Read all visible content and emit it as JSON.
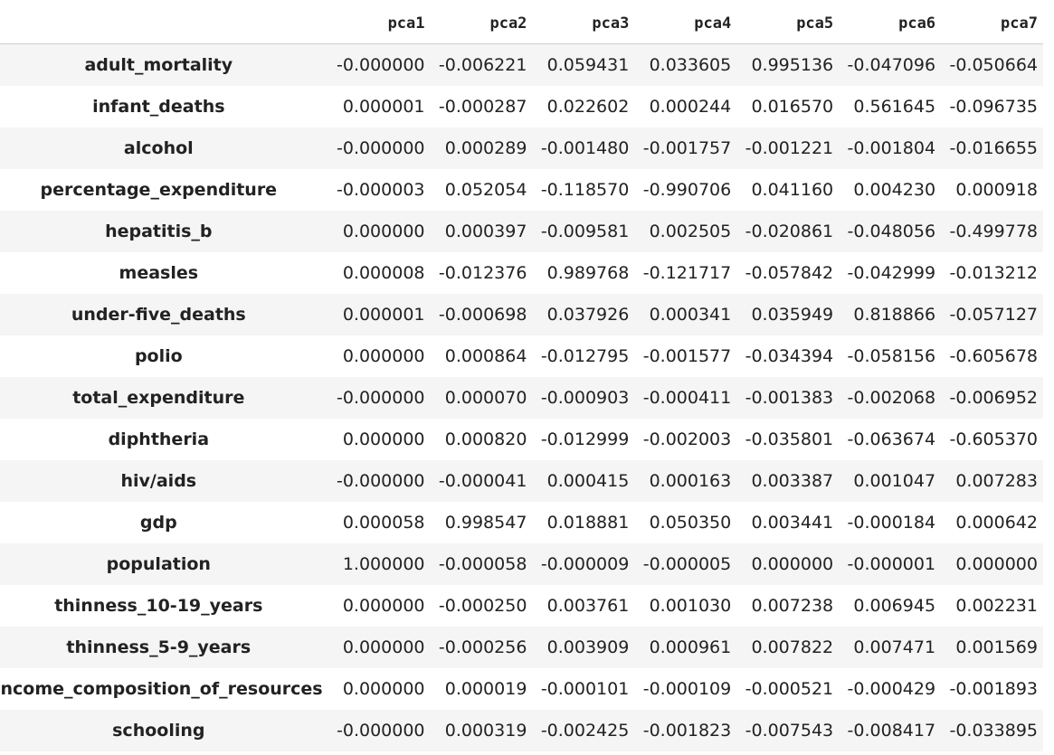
{
  "table": {
    "columns": [
      "pca1",
      "pca2",
      "pca3",
      "pca4",
      "pca5",
      "pca6",
      "pca7"
    ],
    "rows": [
      {
        "label": "adult_mortality",
        "values": [
          "-0.000000",
          "-0.006221",
          "0.059431",
          "0.033605",
          "0.995136",
          "-0.047096",
          "-0.050664"
        ]
      },
      {
        "label": "infant_deaths",
        "values": [
          "0.000001",
          "-0.000287",
          "0.022602",
          "0.000244",
          "0.016570",
          "0.561645",
          "-0.096735"
        ]
      },
      {
        "label": "alcohol",
        "values": [
          "-0.000000",
          "0.000289",
          "-0.001480",
          "-0.001757",
          "-0.001221",
          "-0.001804",
          "-0.016655"
        ]
      },
      {
        "label": "percentage_expenditure",
        "values": [
          "-0.000003",
          "0.052054",
          "-0.118570",
          "-0.990706",
          "0.041160",
          "0.004230",
          "0.000918"
        ]
      },
      {
        "label": "hepatitis_b",
        "values": [
          "0.000000",
          "0.000397",
          "-0.009581",
          "0.002505",
          "-0.020861",
          "-0.048056",
          "-0.499778"
        ]
      },
      {
        "label": "measles",
        "values": [
          "0.000008",
          "-0.012376",
          "0.989768",
          "-0.121717",
          "-0.057842",
          "-0.042999",
          "-0.013212"
        ]
      },
      {
        "label": "under-five_deaths",
        "values": [
          "0.000001",
          "-0.000698",
          "0.037926",
          "0.000341",
          "0.035949",
          "0.818866",
          "-0.057127"
        ]
      },
      {
        "label": "polio",
        "values": [
          "0.000000",
          "0.000864",
          "-0.012795",
          "-0.001577",
          "-0.034394",
          "-0.058156",
          "-0.605678"
        ]
      },
      {
        "label": "total_expenditure",
        "values": [
          "-0.000000",
          "0.000070",
          "-0.000903",
          "-0.000411",
          "-0.001383",
          "-0.002068",
          "-0.006952"
        ]
      },
      {
        "label": "diphtheria",
        "values": [
          "0.000000",
          "0.000820",
          "-0.012999",
          "-0.002003",
          "-0.035801",
          "-0.063674",
          "-0.605370"
        ]
      },
      {
        "label": "hiv/aids",
        "values": [
          "-0.000000",
          "-0.000041",
          "0.000415",
          "0.000163",
          "0.003387",
          "0.001047",
          "0.007283"
        ]
      },
      {
        "label": "gdp",
        "values": [
          "0.000058",
          "0.998547",
          "0.018881",
          "0.050350",
          "0.003441",
          "-0.000184",
          "0.000642"
        ]
      },
      {
        "label": "population",
        "values": [
          "1.000000",
          "-0.000058",
          "-0.000009",
          "-0.000005",
          "0.000000",
          "-0.000001",
          "0.000000"
        ]
      },
      {
        "label": "thinness_10-19_years",
        "values": [
          "0.000000",
          "-0.000250",
          "0.003761",
          "0.001030",
          "0.007238",
          "0.006945",
          "0.002231"
        ]
      },
      {
        "label": "thinness_5-9_years",
        "values": [
          "0.000000",
          "-0.000256",
          "0.003909",
          "0.000961",
          "0.007822",
          "0.007471",
          "0.001569"
        ]
      },
      {
        "label": "income_composition_of_resources",
        "values": [
          "0.000000",
          "0.000019",
          "-0.000101",
          "-0.000109",
          "-0.000521",
          "-0.000429",
          "-0.001893"
        ]
      },
      {
        "label": "schooling",
        "values": [
          "-0.000000",
          "0.000319",
          "-0.002425",
          "-0.001823",
          "-0.007543",
          "-0.008417",
          "-0.033895"
        ]
      }
    ]
  }
}
